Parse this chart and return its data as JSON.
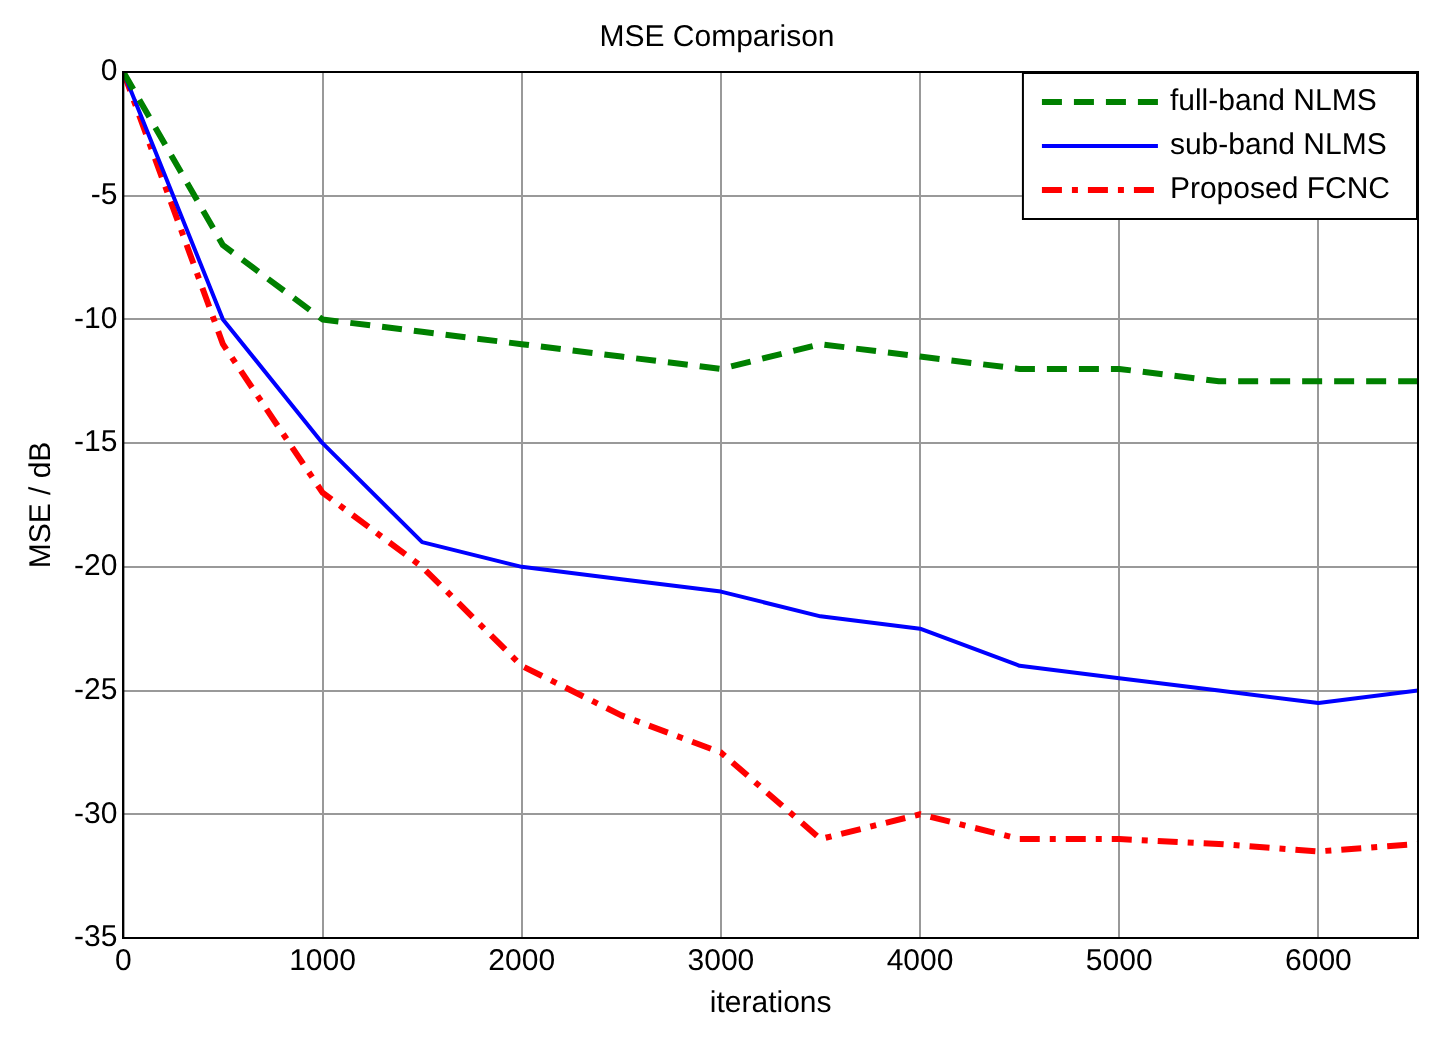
{
  "chart_data": {
    "type": "line",
    "title": "MSE Comparison",
    "xlabel": "iterations",
    "ylabel": "MSE / dB",
    "x": [
      0,
      500,
      1000,
      1500,
      2000,
      2500,
      3000,
      3500,
      4000,
      4500,
      5000,
      5500,
      6000,
      6500
    ],
    "series": [
      {
        "name": "full-band NLMS",
        "color": "#008000",
        "line_style": "dashed",
        "values": [
          0,
          -7,
          -10,
          -10.5,
          -11,
          -11.5,
          -12,
          -11,
          -11.5,
          -12,
          -12,
          -12.5,
          -12.5,
          -12.5
        ]
      },
      {
        "name": "sub-band NLMS",
        "color": "#0000ff",
        "line_style": "solid",
        "values": [
          0,
          -10,
          -15,
          -19,
          -20,
          -20.5,
          -21,
          -22,
          -22.5,
          -24,
          -24.5,
          -25,
          -25.5,
          -25
        ]
      },
      {
        "name": "Proposed FCNC",
        "color": "#ff0000",
        "line_style": "dashdot",
        "values": [
          0,
          -11,
          -17,
          -20,
          -24,
          -26,
          -27.5,
          -31,
          -30,
          -31,
          -31,
          -31.2,
          -31.5,
          -31.2
        ]
      }
    ],
    "xlim": [
      0,
      6500
    ],
    "xticks": [
      0,
      1000,
      2000,
      3000,
      4000,
      5000,
      6000
    ],
    "ylim": [
      -35,
      0
    ],
    "yticks": [
      -35,
      -30,
      -25,
      -20,
      -15,
      -10,
      -5,
      0
    ],
    "grid": true,
    "legend": "top right",
    "marker": "none"
  }
}
